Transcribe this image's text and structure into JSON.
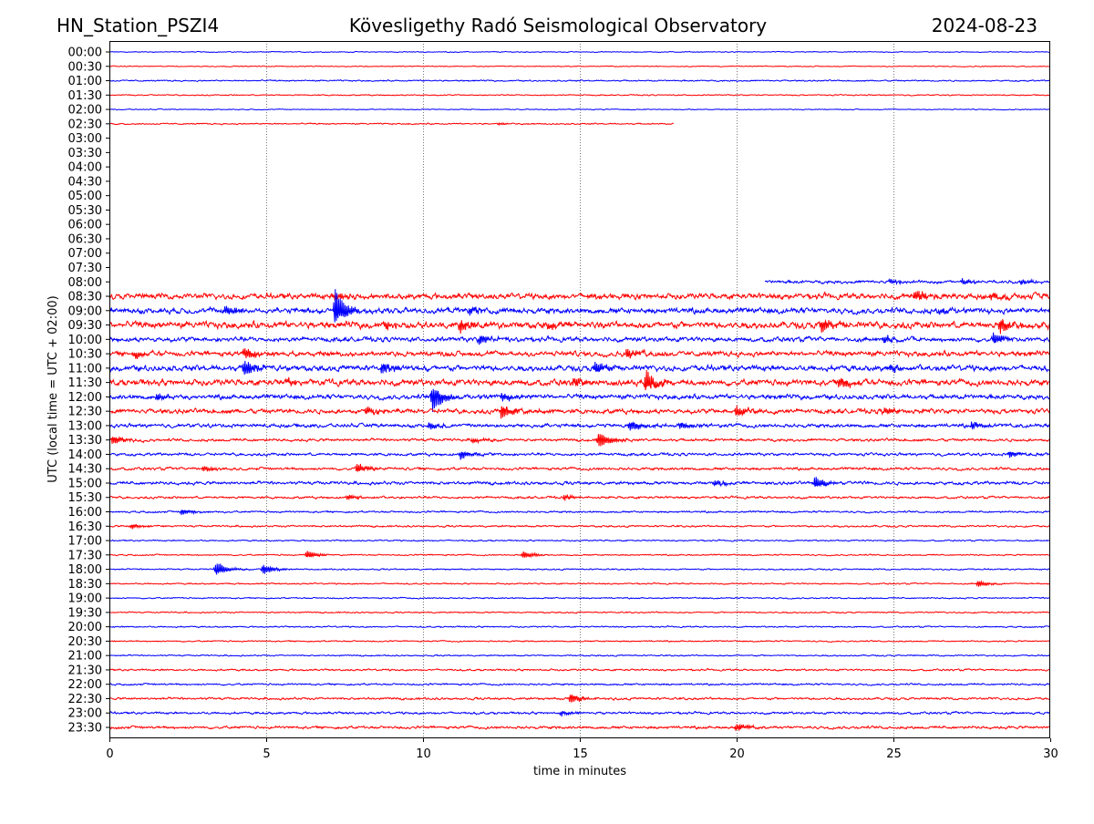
{
  "header": {
    "station": "HN_Station_PSZI4",
    "title": "Kövesligethy Radó Seismological Observatory",
    "date": "2024-08-23"
  },
  "chart_data": {
    "type": "line",
    "subtype": "helicorder",
    "xlabel": "time in minutes",
    "ylabel": "UTC (local time = UTC + 02:00)",
    "xlim": [
      0,
      30
    ],
    "xticks": [
      "0",
      "5",
      "10",
      "15",
      "20",
      "25",
      "30"
    ],
    "grid": "vertical dotted at 5-minute intervals",
    "colors": {
      "even": "#0000ff",
      "odd": "#ff0000"
    },
    "amplitude_units": "relative (1 = row spacing)",
    "rows": [
      {
        "label": "00:00",
        "start": 0,
        "end": 30,
        "noise": 0.02,
        "events": []
      },
      {
        "label": "00:30",
        "start": 0,
        "end": 30,
        "noise": 0.02,
        "events": []
      },
      {
        "label": "01:00",
        "start": 0,
        "end": 30,
        "noise": 0.03,
        "events": []
      },
      {
        "label": "01:30",
        "start": 0,
        "end": 30,
        "noise": 0.025,
        "events": []
      },
      {
        "label": "02:00",
        "start": 0,
        "end": 30,
        "noise": 0.02,
        "events": []
      },
      {
        "label": "02:30",
        "start": 0,
        "end": 18,
        "noise": 0.03,
        "events": [
          {
            "t": 12.4,
            "a": 0.08
          }
        ]
      },
      {
        "label": "03:00",
        "start": null,
        "end": null,
        "noise": 0,
        "events": []
      },
      {
        "label": "03:30",
        "start": null,
        "end": null,
        "noise": 0,
        "events": []
      },
      {
        "label": "04:00",
        "start": null,
        "end": null,
        "noise": 0,
        "events": []
      },
      {
        "label": "04:30",
        "start": null,
        "end": null,
        "noise": 0,
        "events": []
      },
      {
        "label": "05:00",
        "start": null,
        "end": null,
        "noise": 0,
        "events": []
      },
      {
        "label": "05:30",
        "start": null,
        "end": null,
        "noise": 0,
        "events": []
      },
      {
        "label": "06:00",
        "start": null,
        "end": null,
        "noise": 0,
        "events": []
      },
      {
        "label": "06:30",
        "start": null,
        "end": null,
        "noise": 0,
        "events": []
      },
      {
        "label": "07:00",
        "start": null,
        "end": null,
        "noise": 0,
        "events": []
      },
      {
        "label": "07:30",
        "start": null,
        "end": null,
        "noise": 0,
        "events": []
      },
      {
        "label": "08:00",
        "start": 20.9,
        "end": 30,
        "noise": 0.07,
        "events": [
          {
            "t": 24.9,
            "a": 0.2
          },
          {
            "t": 27.2,
            "a": 0.25
          },
          {
            "t": 29.1,
            "a": 0.2
          }
        ]
      },
      {
        "label": "08:30",
        "start": 0,
        "end": 30,
        "noise": 0.12,
        "events": [
          {
            "t": 25.7,
            "a": 0.45
          },
          {
            "t": 28.1,
            "a": 0.3
          },
          {
            "t": 7.2,
            "a": 0.3
          },
          {
            "t": 15.3,
            "a": 0.2
          }
        ]
      },
      {
        "label": "09:00",
        "start": 0,
        "end": 30,
        "noise": 0.12,
        "events": [
          {
            "t": 7.2,
            "a": 1.6
          },
          {
            "t": 3.7,
            "a": 0.4
          },
          {
            "t": 11.5,
            "a": 0.3
          },
          {
            "t": 26.5,
            "a": 0.25
          }
        ]
      },
      {
        "label": "09:30",
        "start": 0,
        "end": 30,
        "noise": 0.14,
        "events": [
          {
            "t": 11.2,
            "a": 0.45
          },
          {
            "t": 22.7,
            "a": 0.55
          },
          {
            "t": 28.4,
            "a": 0.6
          },
          {
            "t": 8.8,
            "a": 0.3
          },
          {
            "t": 14.0,
            "a": 0.3
          }
        ]
      },
      {
        "label": "10:00",
        "start": 0,
        "end": 30,
        "noise": 0.1,
        "events": [
          {
            "t": 11.8,
            "a": 0.4
          },
          {
            "t": 28.2,
            "a": 0.5
          },
          {
            "t": 24.7,
            "a": 0.3
          }
        ]
      },
      {
        "label": "10:30",
        "start": 0,
        "end": 30,
        "noise": 0.11,
        "events": [
          {
            "t": 4.3,
            "a": 0.45
          },
          {
            "t": 16.5,
            "a": 0.4
          },
          {
            "t": 0.8,
            "a": 0.3
          }
        ]
      },
      {
        "label": "11:00",
        "start": 0,
        "end": 30,
        "noise": 0.12,
        "events": [
          {
            "t": 4.3,
            "a": 0.65
          },
          {
            "t": 8.7,
            "a": 0.5
          },
          {
            "t": 15.5,
            "a": 0.45
          },
          {
            "t": 24.9,
            "a": 0.3
          }
        ]
      },
      {
        "label": "11:30",
        "start": 0,
        "end": 30,
        "noise": 0.13,
        "events": [
          {
            "t": 17.1,
            "a": 0.85
          },
          {
            "t": 23.3,
            "a": 0.5
          },
          {
            "t": 14.8,
            "a": 0.4
          },
          {
            "t": 5.7,
            "a": 0.25
          }
        ]
      },
      {
        "label": "12:00",
        "start": 0,
        "end": 30,
        "noise": 0.1,
        "events": [
          {
            "t": 10.3,
            "a": 1.1
          },
          {
            "t": 12.5,
            "a": 0.3
          },
          {
            "t": 1.5,
            "a": 0.3
          }
        ]
      },
      {
        "label": "12:30",
        "start": 0,
        "end": 30,
        "noise": 0.1,
        "events": [
          {
            "t": 12.5,
            "a": 0.6
          },
          {
            "t": 20.0,
            "a": 0.4
          },
          {
            "t": 8.2,
            "a": 0.3
          },
          {
            "t": 24.7,
            "a": 0.3
          }
        ]
      },
      {
        "label": "13:00",
        "start": 0,
        "end": 30,
        "noise": 0.08,
        "events": [
          {
            "t": 16.6,
            "a": 0.4
          },
          {
            "t": 18.2,
            "a": 0.3
          },
          {
            "t": 27.5,
            "a": 0.3
          },
          {
            "t": 10.2,
            "a": 0.3
          }
        ]
      },
      {
        "label": "13:30",
        "start": 0,
        "end": 30,
        "noise": 0.06,
        "events": [
          {
            "t": 15.6,
            "a": 0.65
          },
          {
            "t": 0.1,
            "a": 0.4
          },
          {
            "t": 11.6,
            "a": 0.2
          }
        ]
      },
      {
        "label": "14:00",
        "start": 0,
        "end": 30,
        "noise": 0.06,
        "events": [
          {
            "t": 11.2,
            "a": 0.35
          },
          {
            "t": 28.7,
            "a": 0.25
          }
        ]
      },
      {
        "label": "14:30",
        "start": 0,
        "end": 30,
        "noise": 0.06,
        "events": [
          {
            "t": 7.9,
            "a": 0.4
          },
          {
            "t": 3.0,
            "a": 0.2
          }
        ]
      },
      {
        "label": "15:00",
        "start": 0,
        "end": 30,
        "noise": 0.07,
        "events": [
          {
            "t": 22.5,
            "a": 0.45
          },
          {
            "t": 19.3,
            "a": 0.25
          }
        ]
      },
      {
        "label": "15:30",
        "start": 0,
        "end": 30,
        "noise": 0.05,
        "events": [
          {
            "t": 14.5,
            "a": 0.2
          },
          {
            "t": 7.6,
            "a": 0.2
          }
        ]
      },
      {
        "label": "16:00",
        "start": 0,
        "end": 30,
        "noise": 0.04,
        "events": [
          {
            "t": 2.3,
            "a": 0.25
          }
        ]
      },
      {
        "label": "16:30",
        "start": 0,
        "end": 30,
        "noise": 0.04,
        "events": [
          {
            "t": 0.7,
            "a": 0.2
          }
        ]
      },
      {
        "label": "17:00",
        "start": 0,
        "end": 30,
        "noise": 0.03,
        "events": []
      },
      {
        "label": "17:30",
        "start": 0,
        "end": 30,
        "noise": 0.03,
        "events": [
          {
            "t": 13.2,
            "a": 0.3
          },
          {
            "t": 6.3,
            "a": 0.3
          }
        ]
      },
      {
        "label": "18:00",
        "start": 0,
        "end": 30,
        "noise": 0.03,
        "events": [
          {
            "t": 3.4,
            "a": 0.55
          },
          {
            "t": 4.9,
            "a": 0.4
          }
        ]
      },
      {
        "label": "18:30",
        "start": 0,
        "end": 30,
        "noise": 0.03,
        "events": [
          {
            "t": 27.7,
            "a": 0.25
          }
        ]
      },
      {
        "label": "19:00",
        "start": 0,
        "end": 30,
        "noise": 0.03,
        "events": []
      },
      {
        "label": "19:30",
        "start": 0,
        "end": 30,
        "noise": 0.03,
        "events": []
      },
      {
        "label": "20:00",
        "start": 0,
        "end": 30,
        "noise": 0.03,
        "events": []
      },
      {
        "label": "20:30",
        "start": 0,
        "end": 30,
        "noise": 0.03,
        "events": []
      },
      {
        "label": "21:00",
        "start": 0,
        "end": 30,
        "noise": 0.03,
        "events": []
      },
      {
        "label": "21:30",
        "start": 0,
        "end": 30,
        "noise": 0.04,
        "events": []
      },
      {
        "label": "22:00",
        "start": 0,
        "end": 30,
        "noise": 0.04,
        "events": []
      },
      {
        "label": "22:30",
        "start": 0,
        "end": 30,
        "noise": 0.05,
        "events": [
          {
            "t": 14.7,
            "a": 0.4
          }
        ]
      },
      {
        "label": "23:00",
        "start": 0,
        "end": 30,
        "noise": 0.05,
        "events": [
          {
            "t": 14.4,
            "a": 0.2
          }
        ]
      },
      {
        "label": "23:30",
        "start": 0,
        "end": 30,
        "noise": 0.06,
        "events": [
          {
            "t": 20.0,
            "a": 0.3
          }
        ]
      }
    ]
  }
}
